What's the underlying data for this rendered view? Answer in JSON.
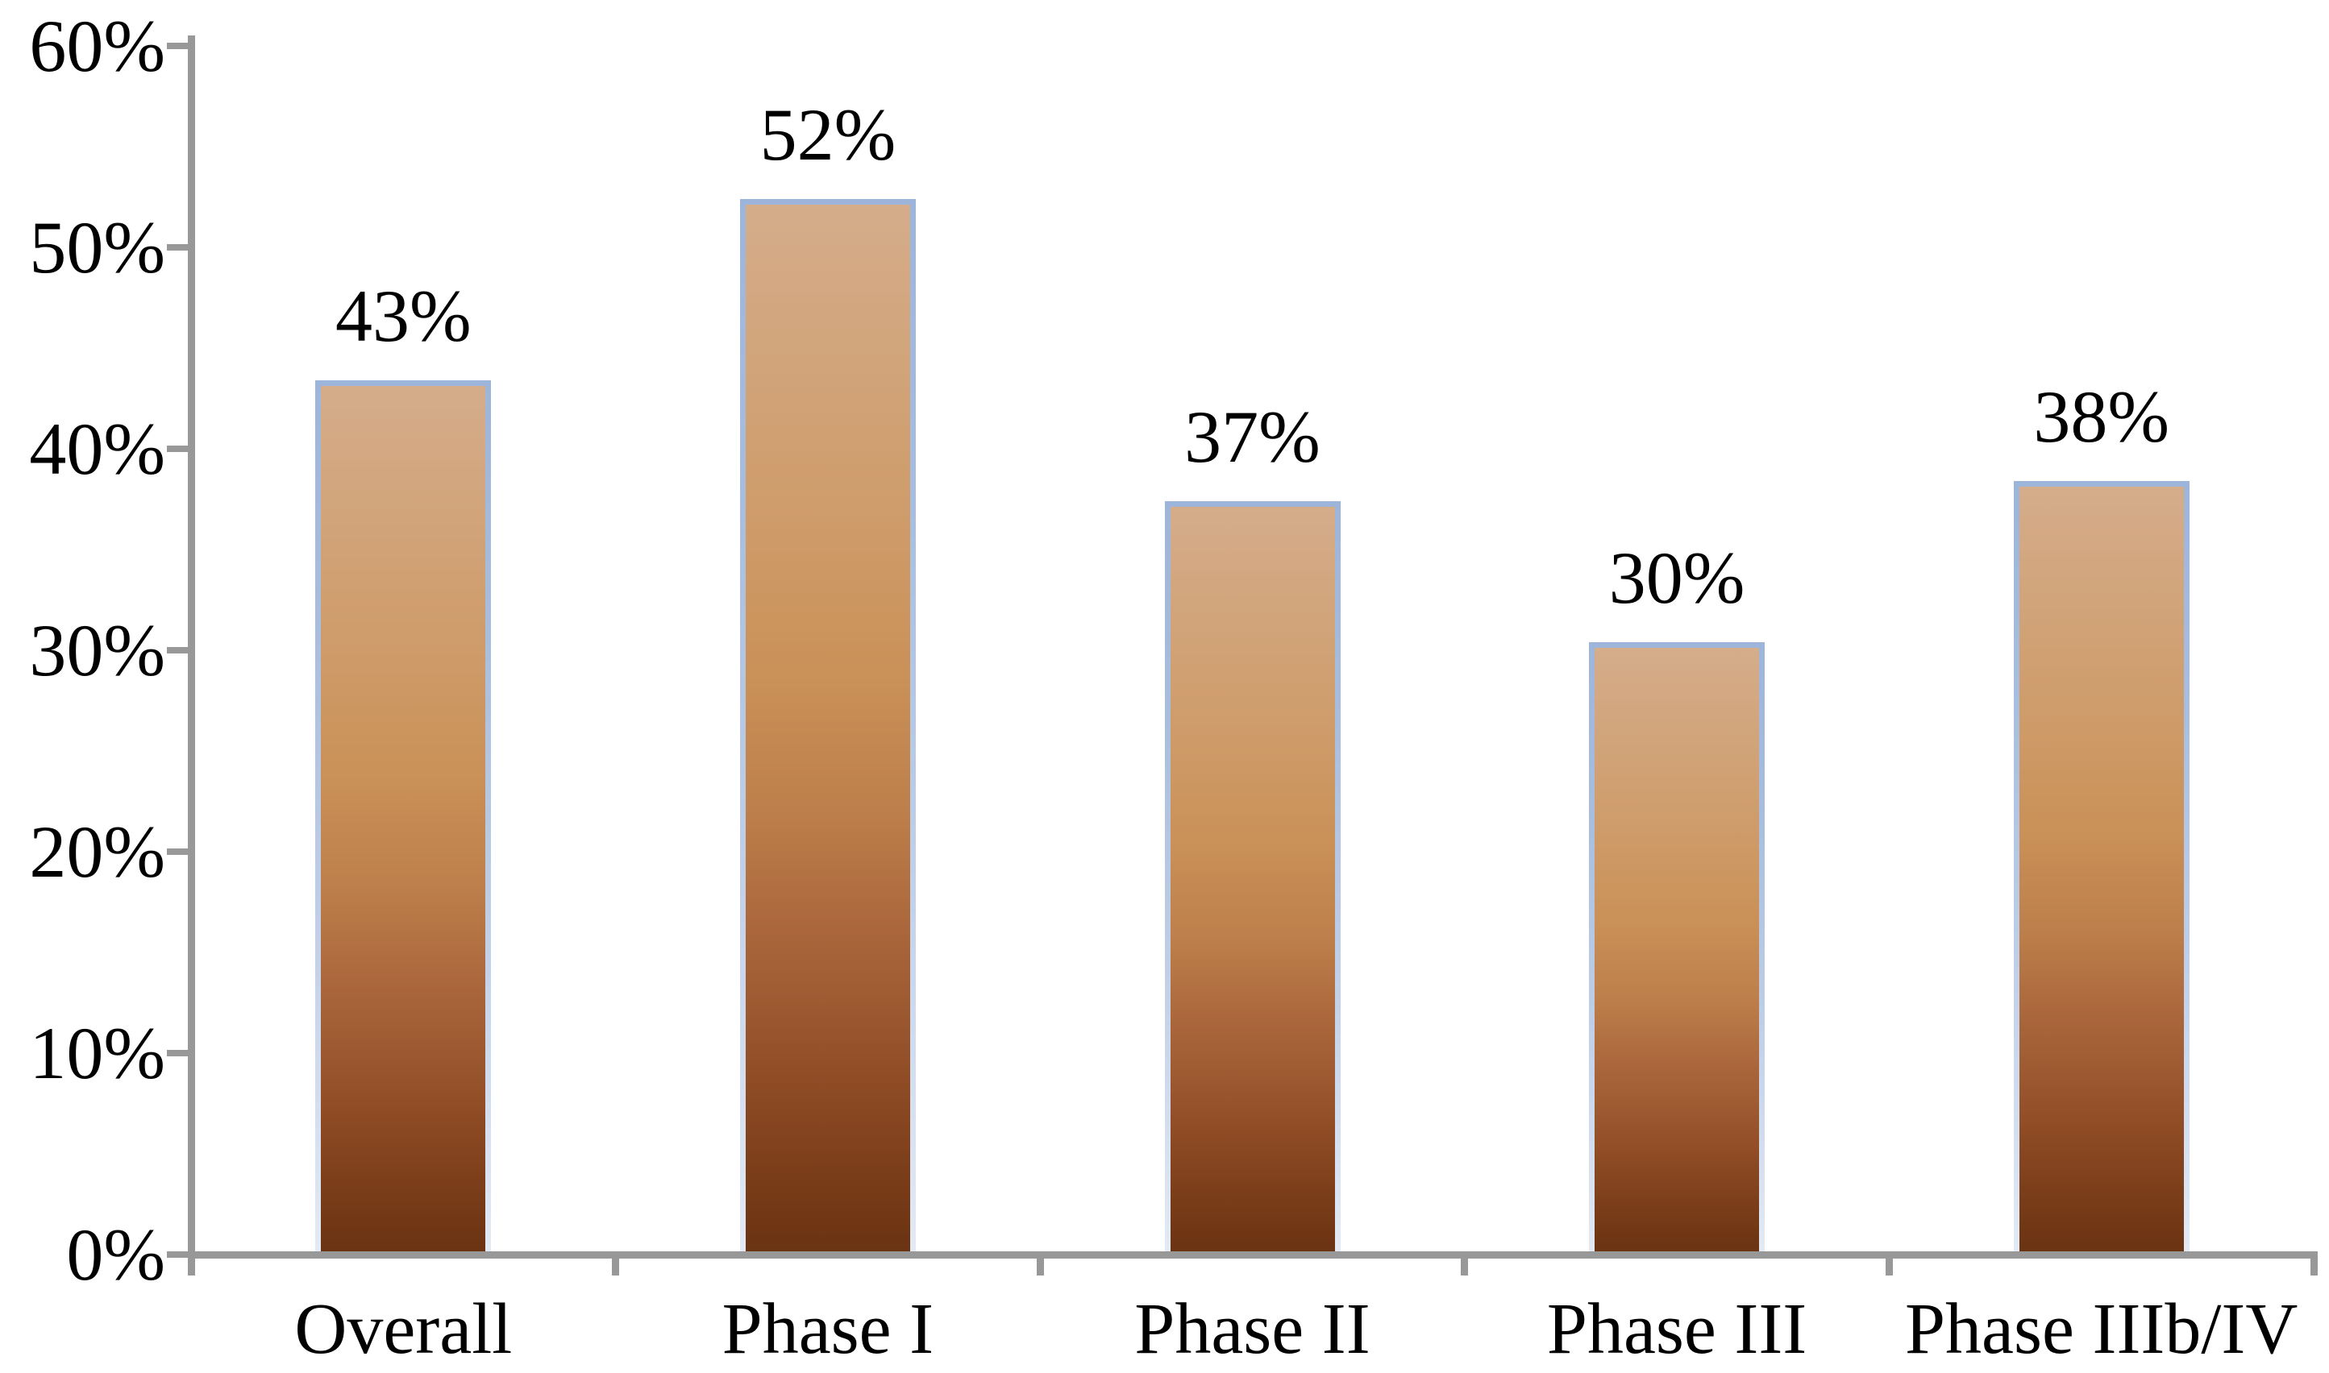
{
  "chart_data": {
    "type": "bar",
    "title": "",
    "xlabel": "",
    "ylabel": "",
    "categories": [
      "Overall",
      "Phase I",
      "Phase II",
      "Phase III",
      "Phase IIIb/IV"
    ],
    "values": [
      43,
      52,
      37,
      30,
      38
    ],
    "bar_labels": [
      "43%",
      "52%",
      "37%",
      "30%",
      "38%"
    ],
    "ylim": [
      0,
      60
    ],
    "ytick_interval": 10,
    "yticks": [
      "0%",
      "10%",
      "20%",
      "30%",
      "40%",
      "50%",
      "60%"
    ],
    "grid": false,
    "legend_position": "none",
    "colors": {
      "axis": "#989898",
      "label_text": "#000000",
      "background": "#ffffff",
      "bar_border_top": "#9db5da",
      "bar_border_bottom": "#e3eaf5",
      "bar_fill_top": "#d5ad8b",
      "bar_fill_mid": "#ca9158",
      "bar_fill_bottom": "#6a3312"
    }
  }
}
